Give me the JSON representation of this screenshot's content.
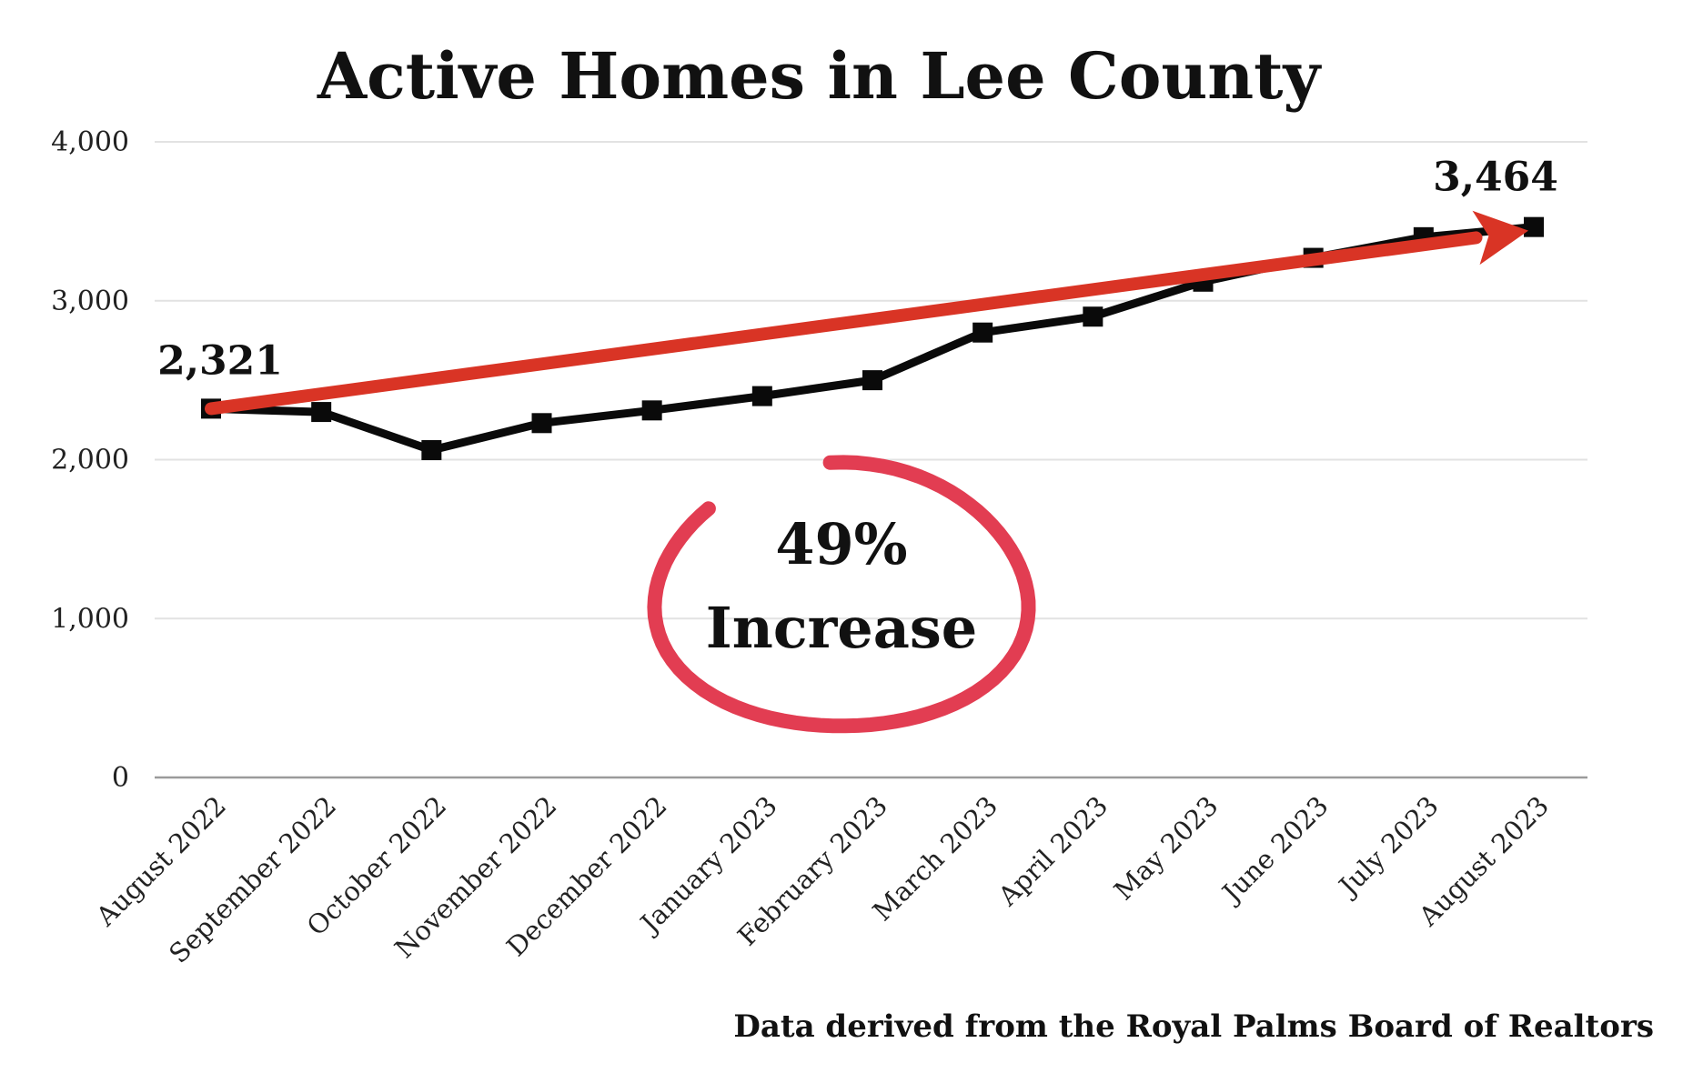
{
  "chart_data": {
    "type": "line",
    "title": "Active Homes in Lee County",
    "categories": [
      "August 2022",
      "September 2022",
      "October 2022",
      "November 2022",
      "December 2022",
      "January 2023",
      "February 2023",
      "March 2023",
      "April 2023",
      "May 2023",
      "June 2023",
      "July 2023",
      "August 2023"
    ],
    "series": [
      {
        "values": [
          2321,
          2300,
          2060,
          2230,
          2310,
          2400,
          2500,
          2800,
          2900,
          3120,
          3270,
          3400,
          3464
        ],
        "color": "#0a0a0a"
      }
    ],
    "ylim": [
      0,
      4000
    ],
    "yticks": [
      "0",
      "1,000",
      "2,000",
      "3,000",
      "4,000"
    ],
    "ytick_values": [
      0,
      1000,
      2000,
      3000,
      4000
    ],
    "grid": true,
    "data_labels": {
      "first": "2,321",
      "last": "3,464"
    },
    "trend_arrow": {
      "from": 2321,
      "to": 3464,
      "color": "#d93425"
    },
    "annotation": {
      "line1": "49%",
      "line2": "Increase",
      "circle_color": "#e23d52"
    },
    "source": "Data derived from the Royal Palms Board of Realtors"
  }
}
